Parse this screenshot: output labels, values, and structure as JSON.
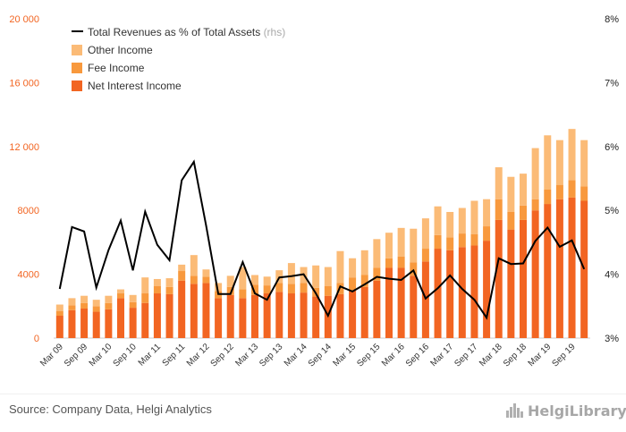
{
  "chart_data": {
    "type": "bar",
    "stacked": true,
    "categories": [
      "Mar 09",
      "Jun 09",
      "Sep 09",
      "Dec 09",
      "Mar 10",
      "Jun 10",
      "Sep 10",
      "Dec 10",
      "Mar 11",
      "Jun 11",
      "Sep 11",
      "Dec 11",
      "Mar 12",
      "Jun 12",
      "Sep 12",
      "Dec 12",
      "Mar 13",
      "Jun 13",
      "Sep 13",
      "Dec 13",
      "Mar 14",
      "Jun 14",
      "Sep 14",
      "Dec 14",
      "Mar 15",
      "Jun 15",
      "Sep 15",
      "Dec 15",
      "Mar 16",
      "Jun 16",
      "Sep 16",
      "Dec 16",
      "Mar 17",
      "Jun 17",
      "Sep 17",
      "Dec 17",
      "Mar 18",
      "Jun 18",
      "Sep 18",
      "Dec 18",
      "Mar 19",
      "Jun 19",
      "Sep 19",
      "Dec 19"
    ],
    "x_tick_labels": [
      "Mar 09",
      "Sep 09",
      "Mar 10",
      "Sep 10",
      "Mar 11",
      "Sep 11",
      "Mar 12",
      "Sep 12",
      "Mar 13",
      "Sep 13",
      "Mar 14",
      "Sep 14",
      "Mar 15",
      "Sep 15",
      "Mar 16",
      "Sep 16",
      "Mar 17",
      "Sep 17",
      "Mar 18",
      "Sep 18",
      "Mar 19",
      "Sep 19"
    ],
    "series": [
      {
        "name": "Net Interest Income",
        "color": "#f26522",
        "values": [
          1400,
          1750,
          1850,
          1650,
          1800,
          2500,
          1900,
          2200,
          2800,
          2750,
          3600,
          3400,
          3450,
          2500,
          2700,
          2500,
          2700,
          2800,
          2900,
          2800,
          2850,
          2600,
          2650,
          2750,
          3000,
          3200,
          3600,
          4400,
          4400,
          3900,
          4800,
          5600,
          5500,
          5700,
          5800,
          6100,
          7400,
          6800,
          7400,
          8000,
          8400,
          8700,
          8800,
          8600
        ]
      },
      {
        "name": "Fee Income",
        "color": "#f8993d",
        "values": [
          300,
          300,
          350,
          350,
          400,
          300,
          350,
          600,
          450,
          450,
          600,
          500,
          400,
          450,
          500,
          550,
          650,
          500,
          550,
          600,
          600,
          550,
          600,
          700,
          800,
          750,
          800,
          600,
          700,
          850,
          800,
          850,
          800,
          850,
          700,
          900,
          1300,
          1100,
          900,
          700,
          900,
          900,
          1100,
          900
        ]
      },
      {
        "name": "Other Income",
        "color": "#fbbb77",
        "values": [
          400,
          450,
          450,
          400,
          450,
          250,
          450,
          1000,
          450,
          550,
          400,
          1300,
          450,
          500,
          700,
          1400,
          600,
          550,
          800,
          1300,
          1000,
          1400,
          1200,
          2000,
          1200,
          1550,
          1800,
          1600,
          1800,
          2100,
          1900,
          1800,
          1600,
          1600,
          2100,
          1700,
          2000,
          2200,
          2000,
          3200,
          3400,
          2800,
          3200,
          2900
        ]
      }
    ],
    "line_series": {
      "name": "Total Revenues as % of Total Assets",
      "suffix": "(rhs)",
      "color": "#000000",
      "axis": "right",
      "values": [
        3.77,
        4.74,
        4.67,
        3.79,
        4.38,
        4.84,
        4.06,
        4.98,
        4.46,
        4.22,
        5.47,
        5.76,
        4.76,
        3.69,
        3.69,
        4.19,
        3.7,
        3.6,
        3.95,
        3.97,
        4.0,
        3.7,
        3.35,
        3.81,
        3.73,
        3.84,
        3.96,
        3.93,
        3.91,
        4.06,
        3.62,
        3.78,
        3.98,
        3.77,
        3.6,
        3.32,
        4.25,
        4.16,
        4.17,
        4.52,
        4.73,
        4.43,
        4.53,
        4.08
      ]
    },
    "y_left": {
      "min": 0,
      "max": 20000,
      "ticks": [
        "0",
        "4000",
        "8000",
        "12 000",
        "16 000",
        "20 000"
      ],
      "tick_values": [
        0,
        4000,
        8000,
        12000,
        16000,
        20000
      ],
      "color": "#f26522"
    },
    "y_right": {
      "min": 3,
      "max": 8,
      "ticks": [
        "3%",
        "4%",
        "5%",
        "6%",
        "7%",
        "8%"
      ],
      "tick_values": [
        3,
        4,
        5,
        6,
        7,
        8
      ]
    },
    "legend_position": "top-left",
    "grid": false
  },
  "legend": {
    "line_label": "Total Revenues as % of Total Assets",
    "line_suffix": "(rhs)",
    "other_label": "Other Income",
    "fee_label": "Fee Income",
    "nii_label": "Net Interest Income"
  },
  "footer": {
    "source": "Source: Company Data, Helgi Analytics",
    "brand": "HelgiLibrary"
  }
}
